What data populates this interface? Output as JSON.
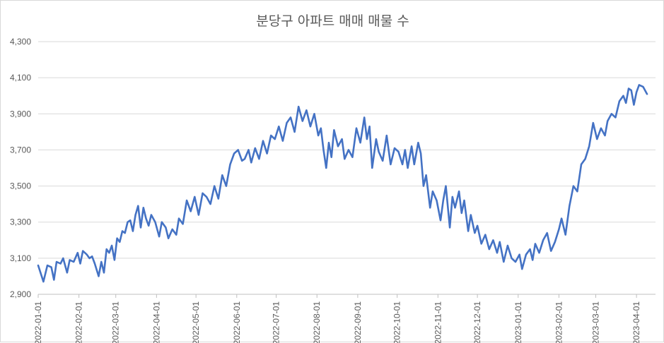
{
  "chart_data": {
    "type": "line",
    "title": "분당구 아파트 매매 매물 수",
    "xlabel": "",
    "ylabel": "",
    "ylim": [
      2900,
      4300
    ],
    "yticks": [
      2900,
      3100,
      3300,
      3500,
      3700,
      3900,
      4100,
      4300
    ],
    "ytick_labels": [
      "2,900",
      "3,100",
      "3,300",
      "3,500",
      "3,700",
      "3,900",
      "4,100",
      "4,300"
    ],
    "grid": true,
    "legend": "none",
    "line_color": "#4472C4",
    "xticks": [
      "2022-01-01",
      "2022-02-01",
      "2022-03-01",
      "2022-04-01",
      "2022-05-01",
      "2022-06-01",
      "2022-07-01",
      "2022-08-01",
      "2022-09-01",
      "2022-10-01",
      "2022-11-01",
      "2022-12-01",
      "2023-01-01",
      "2023-02-01",
      "2023-03-01",
      "2023-04-01"
    ],
    "xrange": [
      "2022-01-01",
      "2023-04-09"
    ],
    "series": [
      {
        "values": [
          [
            "2022-01-01",
            3060
          ],
          [
            "2022-01-05",
            2970
          ],
          [
            "2022-01-08",
            3060
          ],
          [
            "2022-01-11",
            3050
          ],
          [
            "2022-01-13",
            2980
          ],
          [
            "2022-01-15",
            3080
          ],
          [
            "2022-01-18",
            3070
          ],
          [
            "2022-01-20",
            3100
          ],
          [
            "2022-01-23",
            3020
          ],
          [
            "2022-01-25",
            3090
          ],
          [
            "2022-01-28",
            3080
          ],
          [
            "2022-01-31",
            3130
          ],
          [
            "2022-02-02",
            3070
          ],
          [
            "2022-02-04",
            3140
          ],
          [
            "2022-02-07",
            3120
          ],
          [
            "2022-02-09",
            3100
          ],
          [
            "2022-02-11",
            3110
          ],
          [
            "2022-02-13",
            3070
          ],
          [
            "2022-02-16",
            3000
          ],
          [
            "2022-02-18",
            3080
          ],
          [
            "2022-02-20",
            3020
          ],
          [
            "2022-02-22",
            3150
          ],
          [
            "2022-02-24",
            3130
          ],
          [
            "2022-02-26",
            3170
          ],
          [
            "2022-02-28",
            3090
          ],
          [
            "2022-03-02",
            3210
          ],
          [
            "2022-03-04",
            3190
          ],
          [
            "2022-03-06",
            3250
          ],
          [
            "2022-03-08",
            3240
          ],
          [
            "2022-03-10",
            3300
          ],
          [
            "2022-03-12",
            3310
          ],
          [
            "2022-03-14",
            3250
          ],
          [
            "2022-03-16",
            3340
          ],
          [
            "2022-03-18",
            3390
          ],
          [
            "2022-03-20",
            3270
          ],
          [
            "2022-03-22",
            3380
          ],
          [
            "2022-03-24",
            3320
          ],
          [
            "2022-03-26",
            3280
          ],
          [
            "2022-03-28",
            3340
          ],
          [
            "2022-03-31",
            3300
          ],
          [
            "2022-04-03",
            3220
          ],
          [
            "2022-04-05",
            3300
          ],
          [
            "2022-04-08",
            3270
          ],
          [
            "2022-04-10",
            3210
          ],
          [
            "2022-04-13",
            3260
          ],
          [
            "2022-04-16",
            3230
          ],
          [
            "2022-04-18",
            3320
          ],
          [
            "2022-04-21",
            3290
          ],
          [
            "2022-04-24",
            3420
          ],
          [
            "2022-04-27",
            3360
          ],
          [
            "2022-04-30",
            3440
          ],
          [
            "2022-05-03",
            3340
          ],
          [
            "2022-05-06",
            3460
          ],
          [
            "2022-05-09",
            3440
          ],
          [
            "2022-05-12",
            3400
          ],
          [
            "2022-05-15",
            3500
          ],
          [
            "2022-05-18",
            3430
          ],
          [
            "2022-05-21",
            3560
          ],
          [
            "2022-05-24",
            3500
          ],
          [
            "2022-05-27",
            3620
          ],
          [
            "2022-05-30",
            3680
          ],
          [
            "2022-06-02",
            3700
          ],
          [
            "2022-06-05",
            3640
          ],
          [
            "2022-06-07",
            3650
          ],
          [
            "2022-06-10",
            3700
          ],
          [
            "2022-06-12",
            3630
          ],
          [
            "2022-06-15",
            3710
          ],
          [
            "2022-06-18",
            3650
          ],
          [
            "2022-06-21",
            3750
          ],
          [
            "2022-06-24",
            3680
          ],
          [
            "2022-06-27",
            3780
          ],
          [
            "2022-06-30",
            3760
          ],
          [
            "2022-07-03",
            3830
          ],
          [
            "2022-07-06",
            3750
          ],
          [
            "2022-07-09",
            3850
          ],
          [
            "2022-07-12",
            3880
          ],
          [
            "2022-07-15",
            3800
          ],
          [
            "2022-07-18",
            3940
          ],
          [
            "2022-07-21",
            3860
          ],
          [
            "2022-07-24",
            3920
          ],
          [
            "2022-07-27",
            3830
          ],
          [
            "2022-07-30",
            3900
          ],
          [
            "2022-08-02",
            3780
          ],
          [
            "2022-08-04",
            3820
          ],
          [
            "2022-08-06",
            3700
          ],
          [
            "2022-08-08",
            3600
          ],
          [
            "2022-08-10",
            3740
          ],
          [
            "2022-08-12",
            3660
          ],
          [
            "2022-08-14",
            3810
          ],
          [
            "2022-08-17",
            3720
          ],
          [
            "2022-08-20",
            3760
          ],
          [
            "2022-08-22",
            3650
          ],
          [
            "2022-08-25",
            3700
          ],
          [
            "2022-08-28",
            3660
          ],
          [
            "2022-08-31",
            3820
          ],
          [
            "2022-09-03",
            3740
          ],
          [
            "2022-09-06",
            3880
          ],
          [
            "2022-09-08",
            3760
          ],
          [
            "2022-09-10",
            3830
          ],
          [
            "2022-09-12",
            3600
          ],
          [
            "2022-09-15",
            3760
          ],
          [
            "2022-09-17",
            3690
          ],
          [
            "2022-09-20",
            3640
          ],
          [
            "2022-09-23",
            3780
          ],
          [
            "2022-09-26",
            3620
          ],
          [
            "2022-09-29",
            3710
          ],
          [
            "2022-10-02",
            3690
          ],
          [
            "2022-10-05",
            3620
          ],
          [
            "2022-10-07",
            3700
          ],
          [
            "2022-10-09",
            3600
          ],
          [
            "2022-10-12",
            3720
          ],
          [
            "2022-10-14",
            3620
          ],
          [
            "2022-10-17",
            3740
          ],
          [
            "2022-10-19",
            3680
          ],
          [
            "2022-10-21",
            3500
          ],
          [
            "2022-10-23",
            3560
          ],
          [
            "2022-10-26",
            3380
          ],
          [
            "2022-10-28",
            3470
          ],
          [
            "2022-10-31",
            3420
          ],
          [
            "2022-11-03",
            3310
          ],
          [
            "2022-11-05",
            3420
          ],
          [
            "2022-11-07",
            3500
          ],
          [
            "2022-11-10",
            3270
          ],
          [
            "2022-11-12",
            3440
          ],
          [
            "2022-11-14",
            3380
          ],
          [
            "2022-11-17",
            3470
          ],
          [
            "2022-11-19",
            3350
          ],
          [
            "2022-11-21",
            3420
          ],
          [
            "2022-11-24",
            3250
          ],
          [
            "2022-11-26",
            3340
          ],
          [
            "2022-11-29",
            3240
          ],
          [
            "2022-12-01",
            3280
          ],
          [
            "2022-12-04",
            3180
          ],
          [
            "2022-12-07",
            3230
          ],
          [
            "2022-12-10",
            3150
          ],
          [
            "2022-12-13",
            3200
          ],
          [
            "2022-12-16",
            3130
          ],
          [
            "2022-12-18",
            3190
          ],
          [
            "2022-12-21",
            3080
          ],
          [
            "2022-12-24",
            3170
          ],
          [
            "2022-12-27",
            3100
          ],
          [
            "2022-12-30",
            3080
          ],
          [
            "2023-01-02",
            3120
          ],
          [
            "2023-01-04",
            3040
          ],
          [
            "2023-01-07",
            3120
          ],
          [
            "2023-01-10",
            3150
          ],
          [
            "2023-01-12",
            3090
          ],
          [
            "2023-01-14",
            3180
          ],
          [
            "2023-01-17",
            3130
          ],
          [
            "2023-01-20",
            3200
          ],
          [
            "2023-01-23",
            3240
          ],
          [
            "2023-01-26",
            3140
          ],
          [
            "2023-01-29",
            3190
          ],
          [
            "2023-02-01",
            3260
          ],
          [
            "2023-02-03",
            3320
          ],
          [
            "2023-02-06",
            3230
          ],
          [
            "2023-02-09",
            3390
          ],
          [
            "2023-02-12",
            3500
          ],
          [
            "2023-02-15",
            3470
          ],
          [
            "2023-02-18",
            3620
          ],
          [
            "2023-02-21",
            3650
          ],
          [
            "2023-02-24",
            3720
          ],
          [
            "2023-02-27",
            3850
          ],
          [
            "2023-03-02",
            3760
          ],
          [
            "2023-03-05",
            3820
          ],
          [
            "2023-03-08",
            3780
          ],
          [
            "2023-03-10",
            3860
          ],
          [
            "2023-03-13",
            3900
          ],
          [
            "2023-03-16",
            3880
          ],
          [
            "2023-03-19",
            3970
          ],
          [
            "2023-03-22",
            4000
          ],
          [
            "2023-03-24",
            3960
          ],
          [
            "2023-03-26",
            4040
          ],
          [
            "2023-03-28",
            4030
          ],
          [
            "2023-03-30",
            3950
          ],
          [
            "2023-04-01",
            4020
          ],
          [
            "2023-04-03",
            4060
          ],
          [
            "2023-04-06",
            4050
          ],
          [
            "2023-04-09",
            4010
          ]
        ]
      }
    ]
  }
}
